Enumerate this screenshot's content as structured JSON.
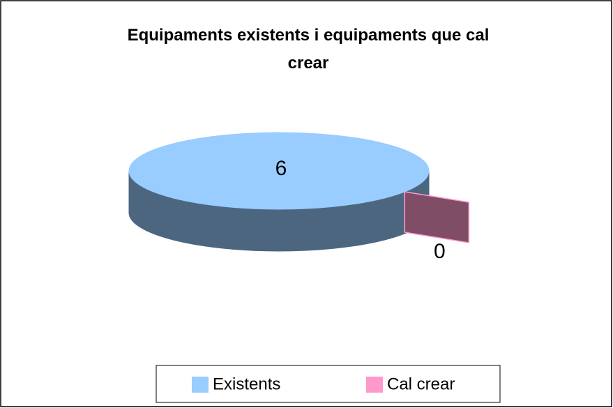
{
  "chart_data": {
    "type": "pie",
    "title": "Equipaments existents i equipaments que cal crear",
    "categories": [
      "Existents",
      "Cal crear"
    ],
    "values": [
      6,
      0
    ],
    "colors": [
      "#99ccff",
      "#ff99cc"
    ],
    "legend": "bottom"
  }
}
